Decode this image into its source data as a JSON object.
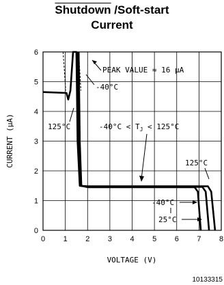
{
  "chart_data": {
    "type": "line",
    "title_line1_overlined": "Shutdown",
    "title_line1_rest": " /Soft-start",
    "title_line2": "Current",
    "xlabel": "VOLTAGE (V)",
    "ylabel": "CURRENT (μA)",
    "xlim": [
      0,
      8
    ],
    "ylim": [
      0,
      6
    ],
    "x_ticks": [
      "0",
      "1",
      "2",
      "3",
      "4",
      "5",
      "6",
      "7",
      "8"
    ],
    "y_ticks": [
      "0",
      "1",
      "2",
      "3",
      "4",
      "5",
      "6"
    ],
    "grid": true,
    "series": [
      {
        "name": "125°C",
        "points": [
          [
            0,
            4.65
          ],
          [
            1.05,
            4.62
          ],
          [
            1.13,
            4.4
          ],
          [
            1.23,
            4.7
          ],
          [
            1.35,
            6.0
          ],
          [
            1.5,
            6.0
          ],
          [
            1.55,
            3.0
          ],
          [
            1.65,
            1.5
          ],
          [
            2.0,
            1.48
          ],
          [
            7.4,
            1.48
          ],
          [
            7.55,
            1.3
          ],
          [
            7.72,
            0
          ]
        ]
      },
      {
        "name": "25°C",
        "points": [
          [
            1.55,
            6.0
          ],
          [
            1.6,
            3.0
          ],
          [
            1.68,
            1.5
          ],
          [
            2.0,
            1.46
          ],
          [
            7.15,
            1.46
          ],
          [
            7.3,
            1.3
          ],
          [
            7.45,
            0
          ]
        ]
      },
      {
        "name": "-40°C",
        "points": [
          [
            1.6,
            6.0
          ],
          [
            1.65,
            3.0
          ],
          [
            1.72,
            1.5
          ],
          [
            2.0,
            1.45
          ],
          [
            6.8,
            1.45
          ],
          [
            6.95,
            1.3
          ],
          [
            7.08,
            0
          ]
        ]
      }
    ],
    "annotations": {
      "peak": "PEAK VALUE ≈ 16 μA",
      "minus40_top": "-40°C",
      "temp_125_left": "125°C",
      "range": "-40°C < T",
      "range_sub": "J",
      "range_end": " < 125°C",
      "temp_125_right": "125°C",
      "minus40_bottom": "-40°C",
      "temp_25": "25°C"
    },
    "figure_code": "10133315"
  }
}
